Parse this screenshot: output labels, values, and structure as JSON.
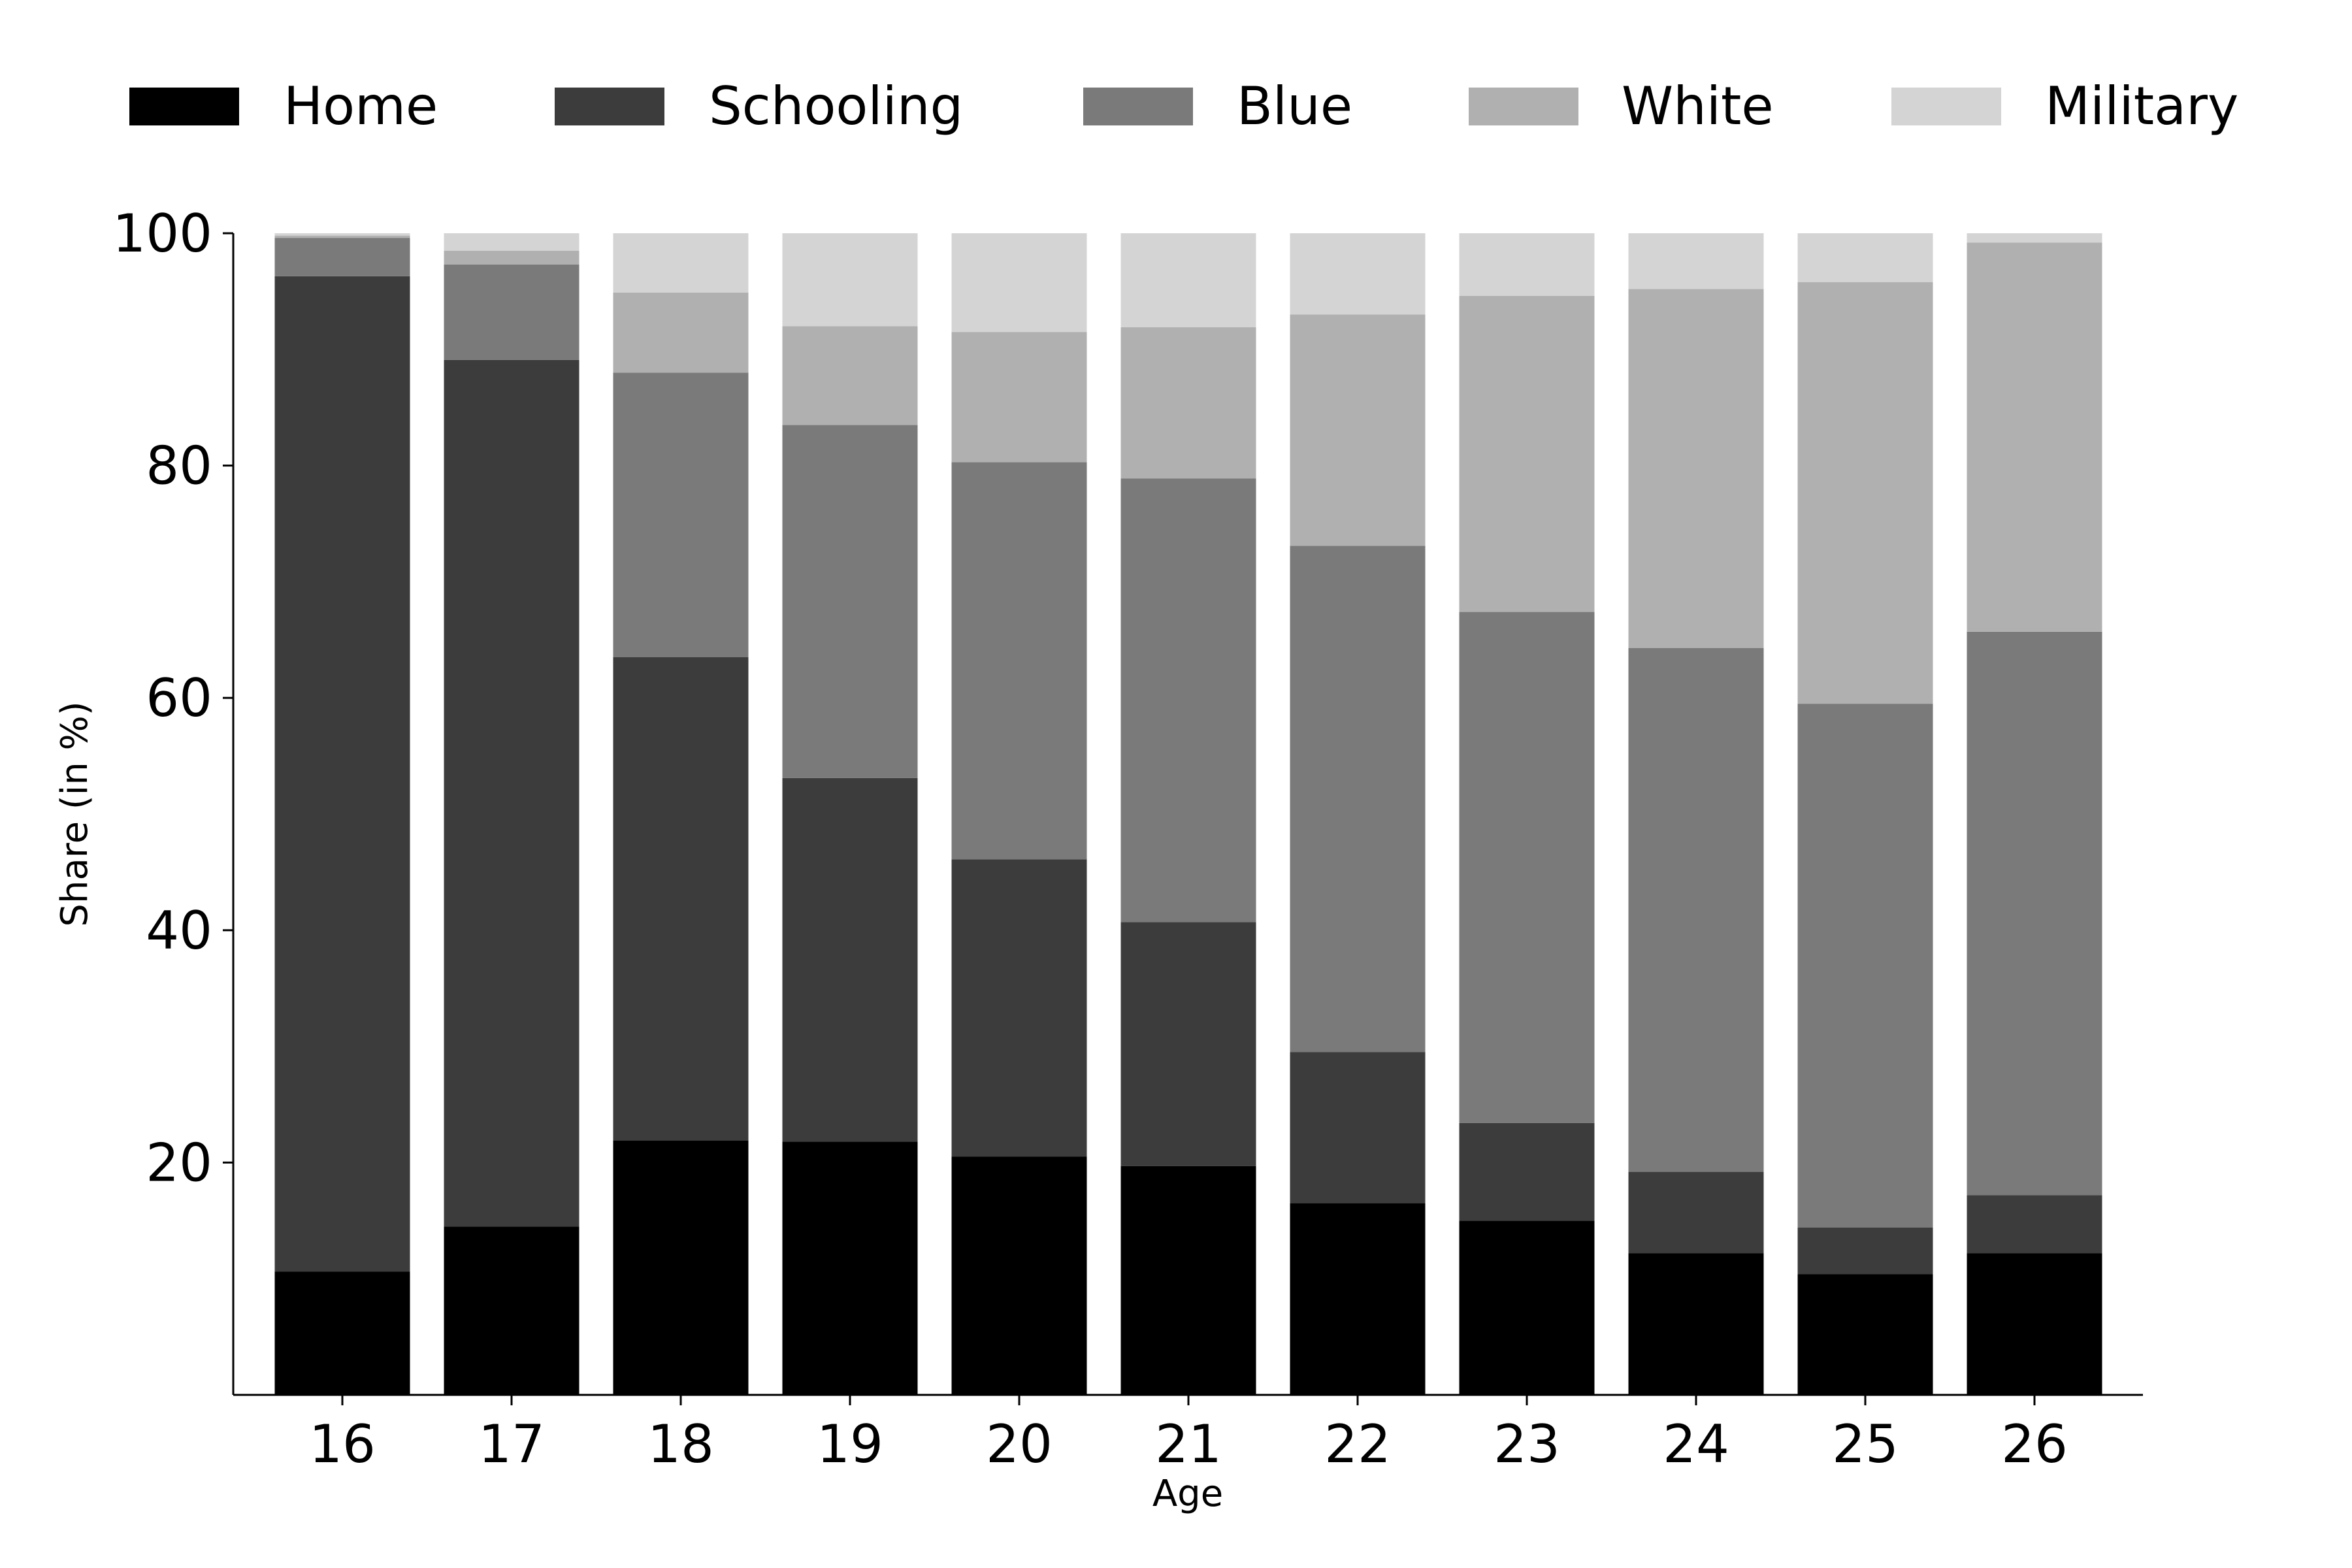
{
  "chart_data": {
    "type": "bar",
    "stacked": true,
    "title": "",
    "xlabel": "Age",
    "ylabel": "Share (in %)",
    "ylim": [
      0,
      100
    ],
    "yticks": [
      "20",
      "40",
      "60",
      "80",
      "100"
    ],
    "grid": false,
    "legend_position": "top",
    "categories": [
      "16",
      "17",
      "18",
      "19",
      "20",
      "21",
      "22",
      "23",
      "24",
      "25",
      "26"
    ],
    "series": [
      {
        "name": "Home",
        "color": "#000000",
        "values": [
          10.6,
          14.5,
          21.9,
          21.8,
          20.5,
          19.7,
          16.5,
          15.0,
          12.2,
          10.4,
          12.2
        ]
      },
      {
        "name": "Schooling",
        "color": "#3c3c3c",
        "values": [
          85.7,
          74.6,
          41.6,
          31.3,
          25.6,
          21.0,
          13.0,
          8.4,
          7.0,
          4.0,
          5.0
        ]
      },
      {
        "name": "Blue",
        "color": "#7a7a7a",
        "values": [
          3.3,
          8.2,
          24.5,
          30.4,
          34.2,
          38.2,
          43.6,
          44.0,
          45.1,
          45.1,
          48.5
        ]
      },
      {
        "name": "White",
        "color": "#b0b0b0",
        "values": [
          0.2,
          1.2,
          6.9,
          8.5,
          11.2,
          13.0,
          19.9,
          27.2,
          30.9,
          36.3,
          33.5
        ]
      },
      {
        "name": "Military",
        "color": "#d4d4d4",
        "values": [
          0.2,
          1.5,
          5.1,
          8.0,
          8.5,
          8.1,
          7.0,
          5.4,
          4.8,
          4.2,
          0.8
        ]
      }
    ]
  }
}
